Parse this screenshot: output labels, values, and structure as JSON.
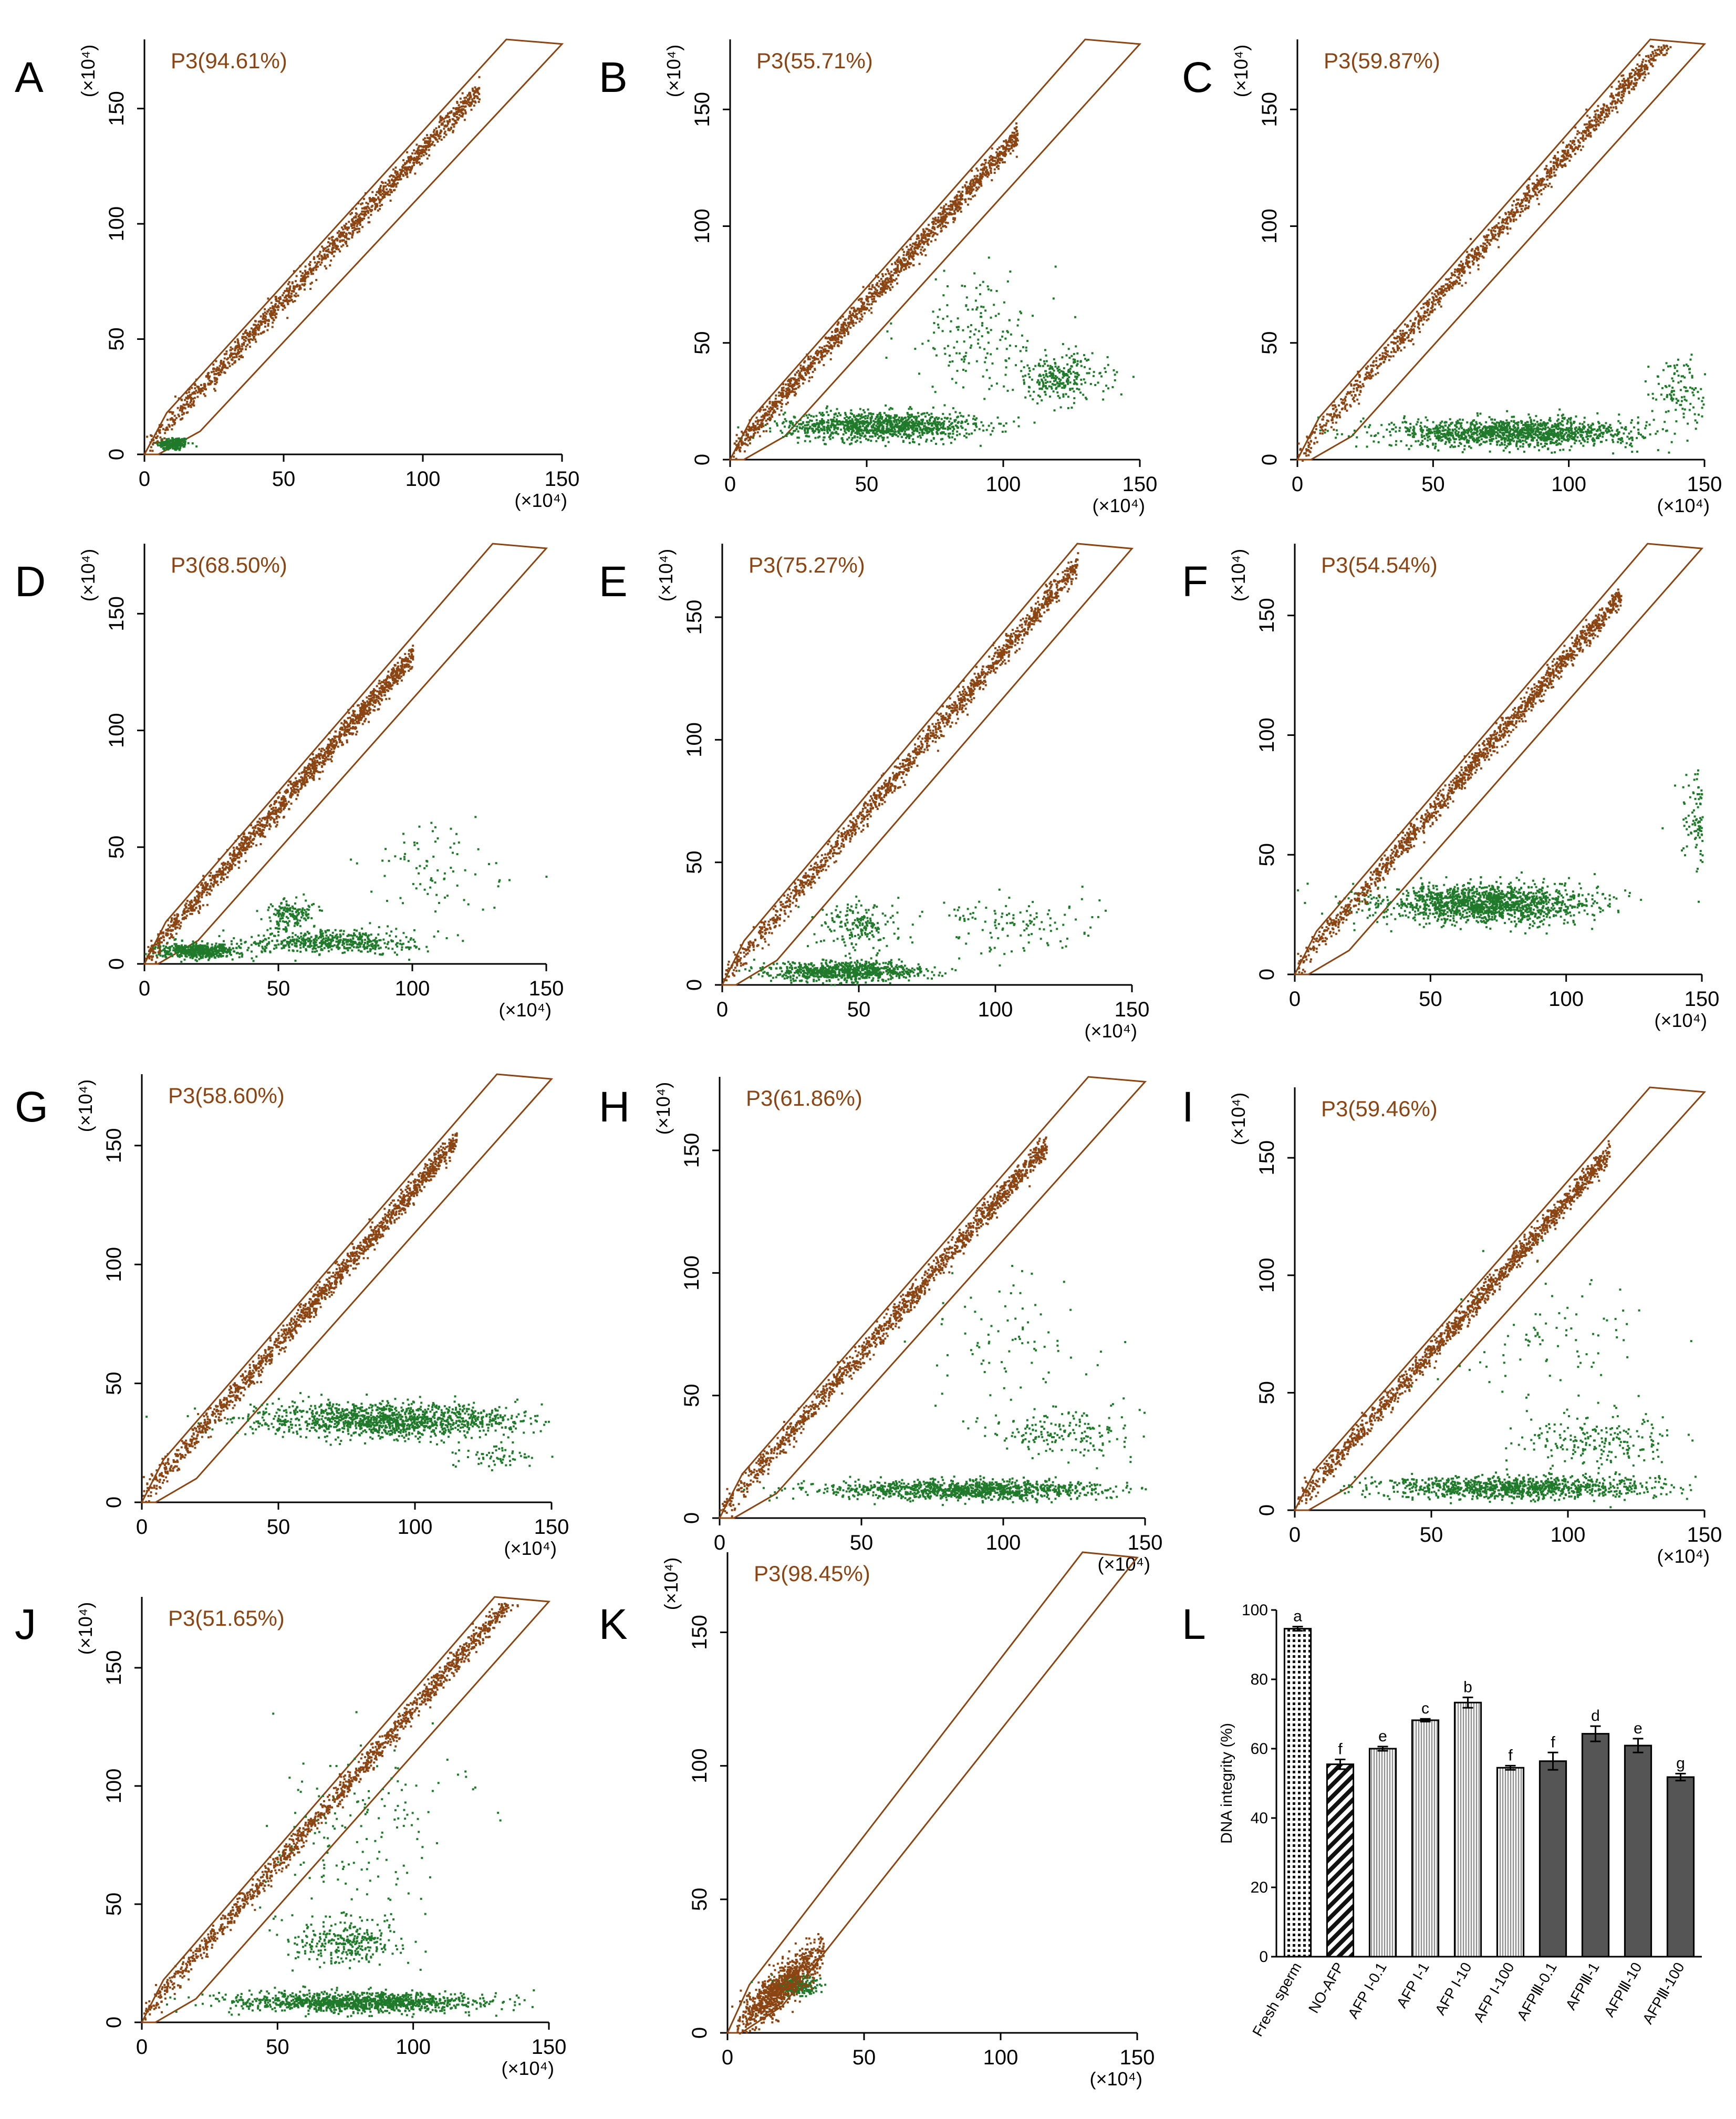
{
  "figure": {
    "description_panels": [
      "A",
      "B",
      "C",
      "D",
      "E",
      "F",
      "G",
      "H",
      "I",
      "J",
      "K",
      "L"
    ]
  },
  "colors": {
    "gate": "#8B4513",
    "dots_in_gate": "#8B4513",
    "dots_out_gate": "#1f7a2a",
    "axis": "#000000",
    "bar_dark": "#555555",
    "bar_light": "#cfcfcf"
  },
  "chart_data": [
    {
      "type": "scatter",
      "panel": "A",
      "title": "",
      "gate_label": "P3(94.61%)",
      "gate_percent": 94.61,
      "xlabel": "",
      "ylabel": "",
      "x_unit": "(×10⁴)",
      "y_unit": "(×10⁴)",
      "xlim": [
        0,
        150
      ],
      "ylim": [
        0,
        180
      ],
      "xticks": [
        0,
        50,
        100,
        150
      ],
      "yticks": [
        0,
        50,
        100,
        150
      ],
      "pattern": "diagonal_tight"
    },
    {
      "type": "scatter",
      "panel": "B",
      "title": "",
      "gate_label": "P3(55.71%)",
      "gate_percent": 55.71,
      "xlabel": "",
      "ylabel": "",
      "x_unit": "(×10⁴)",
      "y_unit": "(×10⁴)",
      "xlim": [
        0,
        150
      ],
      "ylim": [
        0,
        180
      ],
      "xticks": [
        0,
        50,
        100,
        150
      ],
      "yticks": [
        0,
        50,
        100,
        150
      ],
      "pattern": "diagonal_plus_band"
    },
    {
      "type": "scatter",
      "panel": "C",
      "title": "",
      "gate_label": "P3(59.87%)",
      "gate_percent": 59.87,
      "xlabel": "",
      "ylabel": "",
      "x_unit": "(×10⁴)",
      "y_unit": "(×10⁴)",
      "xlim": [
        0,
        150
      ],
      "ylim": [
        0,
        180
      ],
      "xticks": [
        0,
        50,
        100,
        150
      ],
      "yticks": [
        0,
        50,
        100,
        150
      ],
      "pattern": "diagonal_plus_band"
    },
    {
      "type": "scatter",
      "panel": "D",
      "title": "",
      "gate_label": "P3(68.50%)",
      "gate_percent": 68.5,
      "xlabel": "",
      "ylabel": "",
      "x_unit": "(×10⁴)",
      "y_unit": "(×10⁴)",
      "xlim": [
        0,
        150
      ],
      "ylim": [
        0,
        180
      ],
      "xticks": [
        0,
        50,
        100,
        150
      ],
      "yticks": [
        0,
        50,
        100,
        150
      ],
      "pattern": "diagonal_plus_band"
    },
    {
      "type": "scatter",
      "panel": "E",
      "title": "",
      "gate_label": "P3(75.27%)",
      "gate_percent": 75.27,
      "xlabel": "",
      "ylabel": "",
      "x_unit": "(×10⁴)",
      "y_unit": "(×10⁴)",
      "xlim": [
        0,
        150
      ],
      "ylim": [
        0,
        180
      ],
      "xticks": [
        0,
        50,
        100,
        150
      ],
      "yticks": [
        0,
        50,
        100,
        150
      ],
      "pattern": "diagonal_plus_band"
    },
    {
      "type": "scatter",
      "panel": "F",
      "title": "",
      "gate_label": "P3(54.54%)",
      "gate_percent": 54.54,
      "xlabel": "",
      "ylabel": "",
      "x_unit": "(×10⁴)",
      "y_unit": "(×10⁴)",
      "xlim": [
        0,
        150
      ],
      "ylim": [
        0,
        180
      ],
      "xticks": [
        0,
        50,
        100,
        150
      ],
      "yticks": [
        0,
        50,
        100,
        150
      ],
      "pattern": "diagonal_plus_band"
    },
    {
      "type": "scatter",
      "panel": "G",
      "title": "",
      "gate_label": "P3(58.60%)",
      "gate_percent": 58.6,
      "xlabel": "",
      "ylabel": "",
      "x_unit": "(×10⁴)",
      "y_unit": "(×10⁴)",
      "xlim": [
        0,
        150
      ],
      "ylim": [
        0,
        180
      ],
      "xticks": [
        0,
        50,
        100,
        150
      ],
      "yticks": [
        0,
        50,
        100,
        150
      ],
      "pattern": "diagonal_plus_band"
    },
    {
      "type": "scatter",
      "panel": "H",
      "title": "",
      "gate_label": "P3(61.86%)",
      "gate_percent": 61.86,
      "xlabel": "",
      "ylabel": "",
      "x_unit": "(×10⁴)",
      "y_unit": "(×10⁴)",
      "xlim": [
        0,
        150
      ],
      "ylim": [
        0,
        180
      ],
      "xticks": [
        0,
        50,
        100,
        150
      ],
      "yticks": [
        0,
        50,
        100,
        150
      ],
      "pattern": "diagonal_plus_band"
    },
    {
      "type": "scatter",
      "panel": "I",
      "title": "",
      "gate_label": "P3(59.46%)",
      "gate_percent": 59.46,
      "xlabel": "",
      "ylabel": "",
      "x_unit": "(×10⁴)",
      "y_unit": "(×10⁴)",
      "xlim": [
        0,
        150
      ],
      "ylim": [
        0,
        180
      ],
      "xticks": [
        0,
        50,
        100,
        150
      ],
      "yticks": [
        0,
        50,
        100,
        150
      ],
      "pattern": "diagonal_plus_band"
    },
    {
      "type": "scatter",
      "panel": "J",
      "title": "",
      "gate_label": "P3(51.65%)",
      "gate_percent": 51.65,
      "xlabel": "",
      "ylabel": "",
      "x_unit": "(×10⁴)",
      "y_unit": "(×10⁴)",
      "xlim": [
        0,
        150
      ],
      "ylim": [
        0,
        180
      ],
      "xticks": [
        0,
        50,
        100,
        150
      ],
      "yticks": [
        0,
        50,
        100,
        150
      ],
      "pattern": "diagonal_plus_band"
    },
    {
      "type": "scatter",
      "panel": "K",
      "title": "",
      "gate_label": "P3(98.45%)",
      "gate_percent": 98.45,
      "xlabel": "",
      "ylabel": "",
      "x_unit": "(×10⁴)",
      "y_unit": "(×10⁴)",
      "xlim": [
        0,
        150
      ],
      "ylim": [
        0,
        180
      ],
      "xticks": [
        0,
        50,
        100,
        150
      ],
      "yticks": [
        0,
        50,
        100,
        150
      ],
      "pattern": "low_cluster"
    },
    {
      "type": "bar",
      "panel": "L",
      "title": "",
      "xlabel": "",
      "ylabel": "DNA integrity (%)",
      "ylim": [
        0,
        100
      ],
      "yticks": [
        0,
        20,
        40,
        60,
        80,
        100
      ],
      "categories": [
        "Fresh sperm",
        "NO-AFP",
        "AFP I-0.1",
        "AFP I-1",
        "AFP I-10",
        "AFP I-100",
        "AFPⅢ-0.1",
        "AFPⅢ-1",
        "AFPⅢ-10",
        "AFPⅢ-100"
      ],
      "values": [
        94.6,
        55.5,
        60.0,
        68.2,
        73.3,
        54.5,
        56.4,
        64.3,
        60.9,
        51.8
      ],
      "errors": [
        0.6,
        1.4,
        0.6,
        0.4,
        1.5,
        0.6,
        2.5,
        2.2,
        2.0,
        1.0
      ],
      "significance": [
        "a",
        "f",
        "e",
        "c",
        "b",
        "f",
        "f",
        "d",
        "e",
        "g"
      ],
      "fills": [
        "dots",
        "hatch",
        "vstripe",
        "vstripe",
        "vstripe",
        "vstripe",
        "dark",
        "dark",
        "dark",
        "dark"
      ]
    }
  ]
}
